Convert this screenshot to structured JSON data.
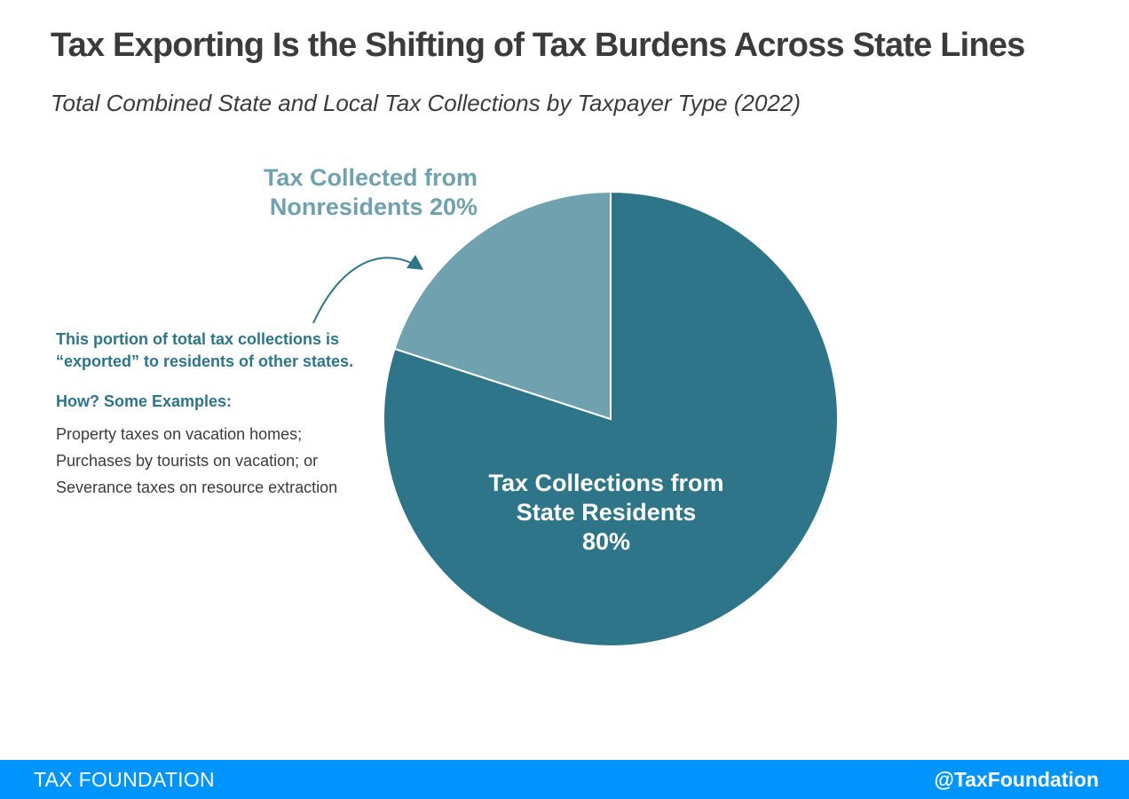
{
  "title": "Tax Exporting Is the Shifting of Tax Burdens Across State Lines",
  "subtitle": "Total Combined State and Local Tax Collections by Taxpayer Type (2022)",
  "chart_data": {
    "type": "pie",
    "title": "Tax Exporting Is the Shifting of Tax Burdens Across State Lines",
    "subtitle": "Total Combined State and Local Tax Collections by Taxpayer Type (2022)",
    "slices": [
      {
        "label_lines": [
          "Tax Collections from",
          "State Residents",
          "80%"
        ],
        "value": 80,
        "color": "#2e7589"
      },
      {
        "label_lines": [
          "Tax Collected from",
          "Nonresidents 20%"
        ],
        "value": 20,
        "color": "#6fa1ae"
      }
    ],
    "annotations": {
      "note": "This portion of total tax collections is “exported” to residents of other states.",
      "examples_heading": "How? Some Examples:",
      "examples": [
        "Property taxes on vacation homes;",
        "Purchases by tourists on vacation; or",
        "Severance taxes on resource extraction"
      ]
    }
  },
  "colors": {
    "text": "#3b3b3b",
    "accent": "#2e7589",
    "footer": "#0094ff"
  },
  "footer": {
    "brand": "TAX FOUNDATION",
    "handle": "@TaxFoundation"
  }
}
